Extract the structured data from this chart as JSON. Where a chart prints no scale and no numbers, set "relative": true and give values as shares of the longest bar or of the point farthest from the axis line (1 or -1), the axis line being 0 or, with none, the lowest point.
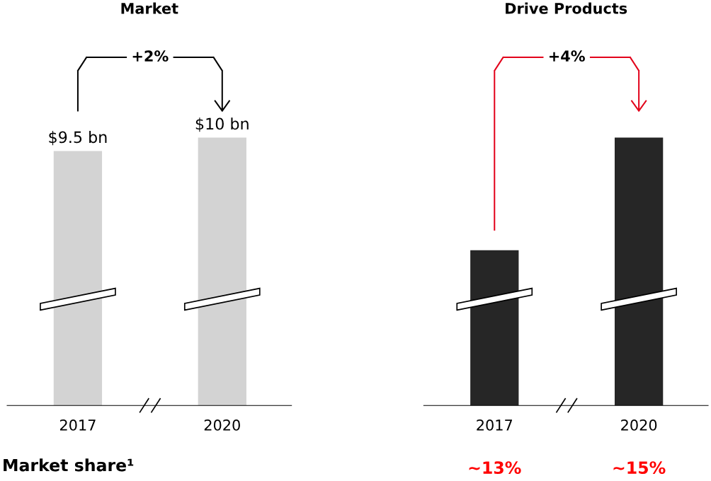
{
  "chart_data": [
    {
      "type": "bar",
      "title": "Market",
      "categories": [
        "2017",
        "2020"
      ],
      "values": [
        9.5,
        10
      ],
      "color": "#d3d3d3",
      "value_labels": [
        "$9.5 bn",
        "$10 bn"
      ],
      "tick_labels": "x",
      "grid": false,
      "legend": false,
      "annotations": [
        "+2%",
        "Market share¹"
      ]
    },
    {
      "type": "bar",
      "title": "Drive Products",
      "categories": [
        "2017",
        "2020"
      ],
      "values": [
        0.58,
        1
      ],
      "color": "#262626",
      "relative": true,
      "grid": false,
      "legend": false,
      "annotations": [
        "+4%",
        "~13%",
        "~15%"
      ]
    }
  ]
}
